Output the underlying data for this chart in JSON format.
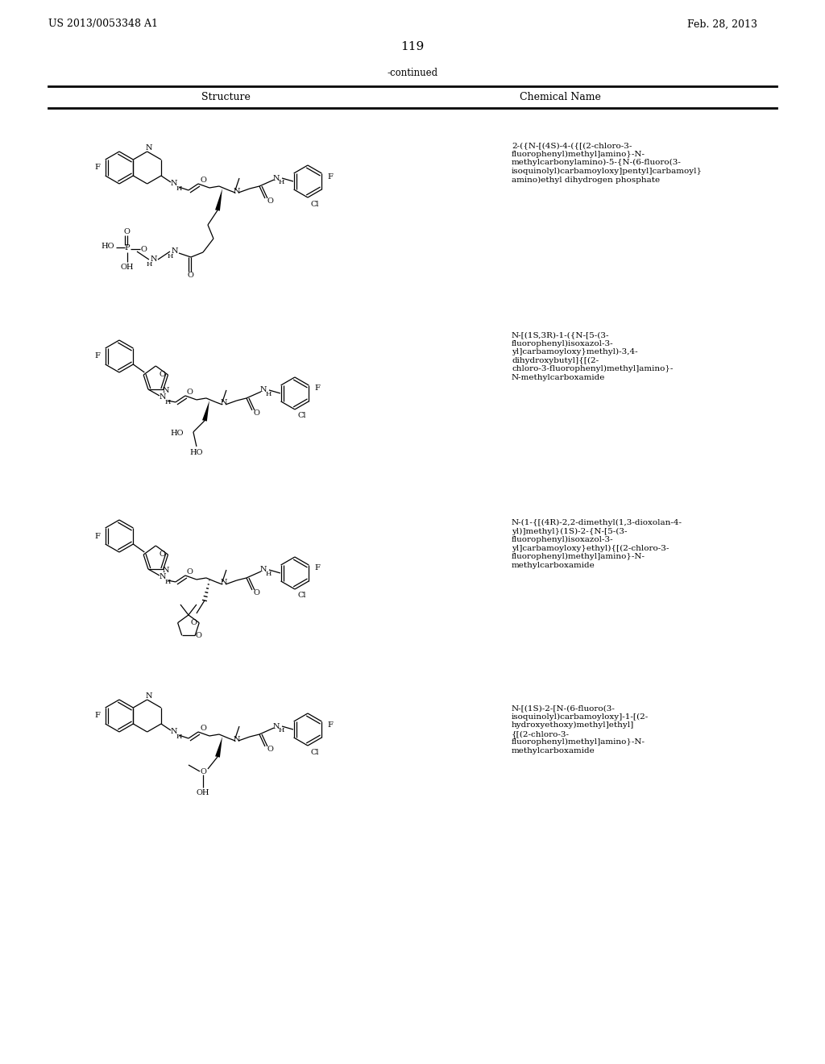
{
  "bg": "#ffffff",
  "header_left": "US 2013/0053348 A1",
  "header_right": "Feb. 28, 2013",
  "page_num": "119",
  "continued": "-continued",
  "col1": "Structure",
  "col2": "Chemical Name",
  "name1": "2-({N-[(4S)-4-({[(2-chloro-3-\nfluorophenyl)methyl]amino}-N-\nmethylcarbonylamino)-5-{N-(6-fluoro(3-\nisoquinolyl)carbamoyloxy]pentyl]carbamoyl}\namino)ethyl dihydrogen phosphate",
  "name2": "N-[(1S,3R)-1-({N-[5-(3-\nfluorophenyl)isoxazol-3-\nyl]carbamoyloxy}methyl)-3,4-\ndihydroxybutyl]{[(2-\nchloro-3-fluorophenyl)methyl]amino}-\nN-methylcarboxamide",
  "name3": "N-(1-{[(4R)-2,2-dimethyl(1,3-dioxolan-4-\nyl)]methyl}(1S)-2-{N-[5-(3-\nfluorophenyl)isoxazol-3-\nyl]carbamoyloxy}ethyl){[(2-chloro-3-\nfluorophenyl)methyl]amino}-N-\nmethylcarboxamide",
  "name4": "N-[(1S)-2-[N-(6-fluoro(3-\nisoquinolyl)carbamoyloxy]-1-[(2-\nhydroxyethoxy)methyl]ethyl]\n{[(2-chloro-3-\nfluorophenyl)methyl]amino}-N-\nmethylcarboxamide"
}
